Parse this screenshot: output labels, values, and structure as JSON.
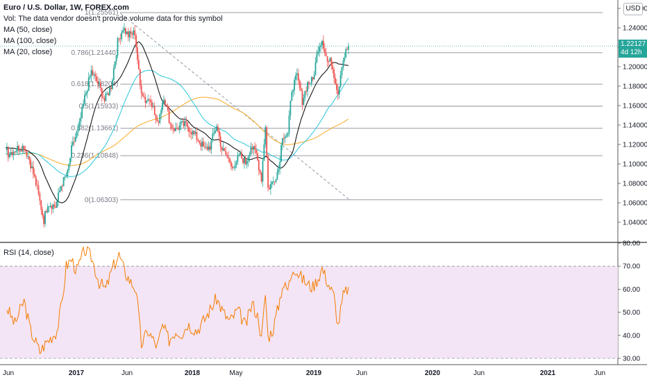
{
  "header": {
    "title": "Euro / U.S. Dollar, 1W, FOREX.com",
    "vol_note": "Vol: The data vendor doesn't provide volume data for this symbol",
    "ma_labels": [
      "MA (50, close)",
      "MA (100, close)",
      "MA (20, close)"
    ],
    "currency": "USD"
  },
  "price_badge": {
    "price": "1.22127",
    "countdown": "4d 12h",
    "color": "#26a69a"
  },
  "rsi_panel": {
    "label": "RSI (14, close)"
  },
  "colors": {
    "up": "#26a69a",
    "down": "#ef5350",
    "ma20": "#000000",
    "ma50": "#26c6da",
    "ma100": "#f9a825",
    "rsi": "#f57c00",
    "rsi_band": "#f3e5f5",
    "fib": "#787b86"
  },
  "chart_data": [
    {
      "type": "candlestick",
      "title": "Euro / U.S. Dollar, 1W, FOREX.com",
      "ylim": [
        1.03,
        1.26
      ],
      "y_ticks": [
        "1.26000",
        "1.24000",
        "1.22000",
        "1.20000",
        "1.18000",
        "1.16000",
        "1.14000",
        "1.12000",
        "1.10000",
        "1.08000",
        "1.06000",
        "1.04000"
      ],
      "x_ticks": [
        "Jun",
        "2017",
        "Jun",
        "2018",
        "May",
        "2019",
        "Jun",
        "2020",
        "Jun",
        "2021",
        "Jun"
      ],
      "close_anchors": [
        [
          "2016-06-06",
          1.11
        ],
        [
          "2016-07-04",
          1.113
        ],
        [
          "2016-08-01",
          1.116
        ],
        [
          "2016-09-05",
          1.118
        ],
        [
          "2016-10-03",
          1.105
        ],
        [
          "2016-11-07",
          1.08
        ],
        [
          "2016-12-19",
          1.042
        ],
        [
          "2017-01-09",
          1.06
        ],
        [
          "2017-02-20",
          1.056
        ],
        [
          "2017-03-20",
          1.078
        ],
        [
          "2017-04-24",
          1.09
        ],
        [
          "2017-05-15",
          1.115
        ],
        [
          "2017-06-26",
          1.14
        ],
        [
          "2017-07-24",
          1.168
        ],
        [
          "2017-08-28",
          1.195
        ],
        [
          "2017-10-09",
          1.18
        ],
        [
          "2017-11-06",
          1.165
        ],
        [
          "2017-12-11",
          1.18
        ],
        [
          "2018-01-15",
          1.225
        ],
        [
          "2018-02-12",
          1.24
        ],
        [
          "2018-03-12",
          1.232
        ],
        [
          "2018-04-16",
          1.235
        ],
        [
          "2018-05-14",
          1.18
        ],
        [
          "2018-06-11",
          1.165
        ],
        [
          "2018-07-09",
          1.168
        ],
        [
          "2018-08-13",
          1.14
        ],
        [
          "2018-09-17",
          1.17
        ],
        [
          "2018-10-22",
          1.14
        ],
        [
          "2018-11-19",
          1.135
        ],
        [
          "2018-12-17",
          1.14
        ],
        [
          "2019-01-14",
          1.14
        ],
        [
          "2019-02-18",
          1.132
        ],
        [
          "2019-03-18",
          1.125
        ],
        [
          "2019-04-22",
          1.115
        ],
        [
          "2019-05-20",
          1.118
        ],
        [
          "2019-06-24",
          1.14
        ],
        [
          "2019-07-22",
          1.115
        ],
        [
          "2019-08-26",
          1.105
        ],
        [
          "2019-09-30",
          1.095
        ],
        [
          "2019-10-21",
          1.11
        ],
        [
          "2019-11-25",
          1.101
        ],
        [
          "2019-12-23",
          1.118
        ],
        [
          "2020-01-20",
          1.11
        ],
        [
          "2020-02-17",
          1.085
        ],
        [
          "2020-03-09",
          1.14
        ],
        [
          "2020-03-23",
          1.075
        ],
        [
          "2020-04-20",
          1.082
        ],
        [
          "2020-05-18",
          1.095
        ],
        [
          "2020-06-08",
          1.13
        ],
        [
          "2020-07-06",
          1.13
        ],
        [
          "2020-07-27",
          1.177
        ],
        [
          "2020-08-24",
          1.19
        ],
        [
          "2020-09-21",
          1.165
        ],
        [
          "2020-10-19",
          1.183
        ],
        [
          "2020-11-16",
          1.186
        ],
        [
          "2020-12-14",
          1.22
        ],
        [
          "2021-01-04",
          1.228
        ],
        [
          "2021-02-01",
          1.205
        ],
        [
          "2021-02-22",
          1.205
        ],
        [
          "2021-03-29",
          1.173
        ],
        [
          "2021-04-19",
          1.203
        ],
        [
          "2021-05-10",
          1.215
        ],
        [
          "2021-05-24",
          1.221
        ]
      ],
      "last_price": 1.22127,
      "moving_averages": [
        {
          "name": "MA (20, close)",
          "period": 20,
          "color": "#000000"
        },
        {
          "name": "MA (50, close)",
          "period": 50,
          "color": "#26c6da"
        },
        {
          "name": "MA (100, close)",
          "period": 100,
          "color": "#f9a825"
        }
      ],
      "fibonacci": [
        {
          "label": "1(1.25561)",
          "value": 1.25561
        },
        {
          "label": "0.786(1.21440)",
          "value": 1.2144
        },
        {
          "label": "0.618(1.18204)",
          "value": 1.18204
        },
        {
          "label": "0.5(1.15933)",
          "value": 1.15933
        },
        {
          "label": "0.382(1.13661)",
          "value": 1.13661
        },
        {
          "label": "0.236(1.10848)",
          "value": 1.10848
        },
        {
          "label": "0(1.06303)",
          "value": 1.06303
        }
      ],
      "trendline": {
        "from": [
          "2018-01-29",
          1.255
        ],
        "to": [
          "2021-05-24",
          1.064
        ]
      }
    },
    {
      "type": "line",
      "title": "RSI (14, close)",
      "ylim": [
        28,
        80
      ],
      "y_ticks": [
        "80.00",
        "70.00",
        "60.00",
        "50.00",
        "40.00",
        "30.00"
      ],
      "band": [
        30,
        70
      ],
      "rsi_anchors": [
        [
          "2016-06-06",
          52
        ],
        [
          "2016-07-18",
          45
        ],
        [
          "2016-09-05",
          55
        ],
        [
          "2016-10-10",
          42
        ],
        [
          "2016-11-28",
          33
        ],
        [
          "2017-01-02",
          37
        ],
        [
          "2017-02-27",
          42
        ],
        [
          "2017-03-27",
          55
        ],
        [
          "2017-04-17",
          70
        ],
        [
          "2017-05-15",
          73
        ],
        [
          "2017-06-12",
          68
        ],
        [
          "2017-07-24",
          77
        ],
        [
          "2017-08-28",
          74
        ],
        [
          "2017-10-09",
          63
        ],
        [
          "2017-11-13",
          60
        ],
        [
          "2017-12-18",
          69
        ],
        [
          "2018-01-22",
          75
        ],
        [
          "2018-02-19",
          68
        ],
        [
          "2018-03-26",
          63
        ],
        [
          "2018-04-23",
          60
        ],
        [
          "2018-05-21",
          36
        ],
        [
          "2018-06-25",
          42
        ],
        [
          "2018-08-13",
          35
        ],
        [
          "2018-09-10",
          44
        ],
        [
          "2018-10-15",
          38
        ],
        [
          "2018-11-19",
          42
        ],
        [
          "2018-12-24",
          41
        ],
        [
          "2019-01-21",
          45
        ],
        [
          "2019-03-11",
          42
        ],
        [
          "2019-04-22",
          47
        ],
        [
          "2019-06-24",
          56
        ],
        [
          "2019-07-29",
          50
        ],
        [
          "2019-09-02",
          46
        ],
        [
          "2019-10-14",
          51
        ],
        [
          "2019-11-25",
          44
        ],
        [
          "2019-12-30",
          54
        ],
        [
          "2020-02-03",
          47
        ],
        [
          "2020-02-17",
          38
        ],
        [
          "2020-03-09",
          58
        ],
        [
          "2020-03-23",
          39
        ],
        [
          "2020-04-20",
          43
        ],
        [
          "2020-05-18",
          53
        ],
        [
          "2020-06-08",
          62
        ],
        [
          "2020-07-06",
          60
        ],
        [
          "2020-08-03",
          70
        ],
        [
          "2020-09-07",
          66
        ],
        [
          "2020-10-19",
          62
        ],
        [
          "2020-11-16",
          61
        ],
        [
          "2020-12-14",
          65
        ],
        [
          "2021-01-04",
          69
        ],
        [
          "2021-02-08",
          62
        ],
        [
          "2021-03-08",
          57
        ],
        [
          "2021-03-29",
          44
        ],
        [
          "2021-04-26",
          57
        ],
        [
          "2021-05-24",
          61
        ]
      ]
    }
  ]
}
